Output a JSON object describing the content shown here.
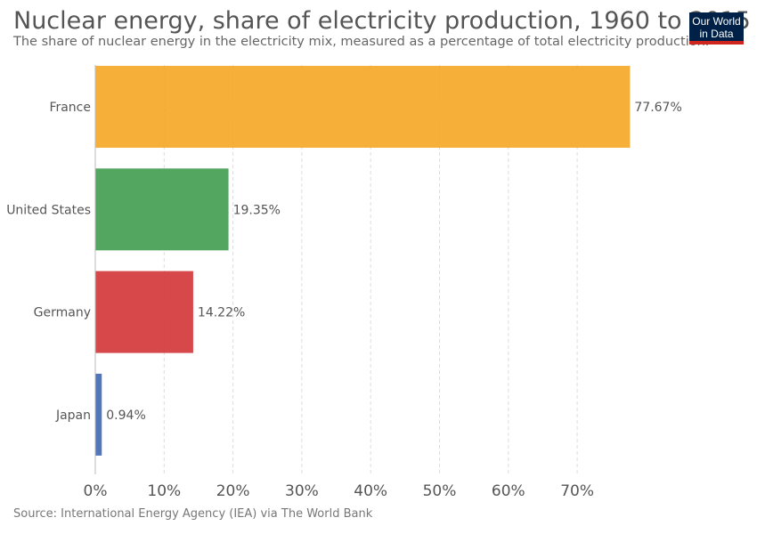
{
  "header": {
    "title": "Nuclear energy, share of electricity production, 1960 to 2015",
    "subtitle": "The share of nuclear energy in the electricity mix, measured as a percentage of total electricity production."
  },
  "logo": {
    "line1": "Our World",
    "line2": "in Data",
    "background": "#002147",
    "accent": "#ce261e"
  },
  "source": "Source: International Energy Agency (IEA) via The World Bank",
  "chart_data": {
    "type": "bar",
    "orientation": "horizontal",
    "categories": [
      "France",
      "United States",
      "Germany",
      "Japan"
    ],
    "values": [
      77.67,
      19.35,
      14.22,
      0.94
    ],
    "value_labels": [
      "77.67%",
      "19.35%",
      "14.22%",
      "0.94%"
    ],
    "colors": [
      "#f5a623",
      "#3f9c4f",
      "#d13436",
      "#3e67b3"
    ],
    "xlim": [
      0,
      80
    ],
    "xticks": [
      0,
      10,
      20,
      30,
      40,
      50,
      60,
      70
    ],
    "xtick_labels": [
      "0%",
      "10%",
      "20%",
      "30%",
      "40%",
      "50%",
      "60%",
      "70%"
    ],
    "grid": "vertical dashed",
    "unit": "%"
  }
}
